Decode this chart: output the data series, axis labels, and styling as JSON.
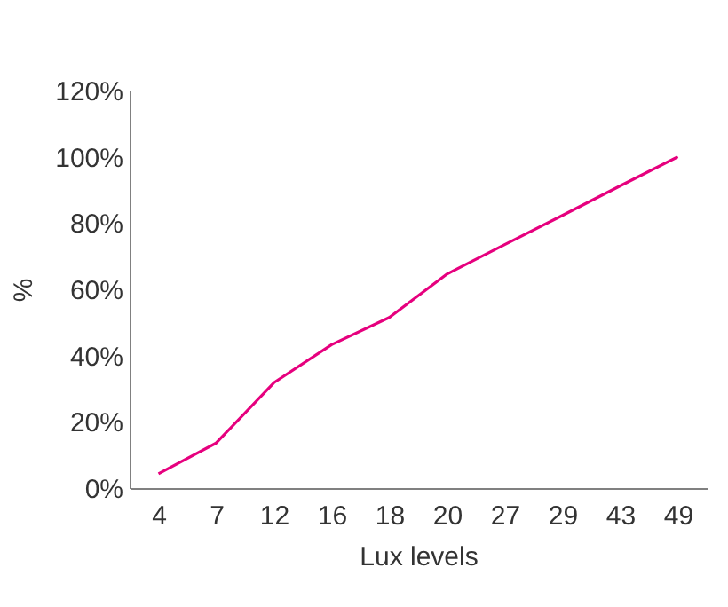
{
  "chart_data": {
    "type": "line",
    "xlabel": "Lux levels",
    "ylabel": "%",
    "categories": [
      "4",
      "7",
      "12",
      "16",
      "18",
      "20",
      "27",
      "29",
      "43",
      "49"
    ],
    "series": [
      {
        "color": "#e6007e",
        "values": [
          4.3,
          13.6,
          31.8,
          43.3,
          51.5,
          64.6,
          73.5,
          82.3,
          91.2,
          100
        ]
      }
    ],
    "ylim": [
      0,
      120
    ],
    "yticks": [
      {
        "value": 0,
        "label": "0%"
      },
      {
        "value": 20,
        "label": "20%"
      },
      {
        "value": 40,
        "label": "40%"
      },
      {
        "value": 60,
        "label": "60%"
      },
      {
        "value": 80,
        "label": "80%"
      },
      {
        "value": 100,
        "label": "100%"
      },
      {
        "value": 120,
        "label": "120%"
      }
    ],
    "grid": false,
    "legend": false,
    "marker": "none"
  }
}
